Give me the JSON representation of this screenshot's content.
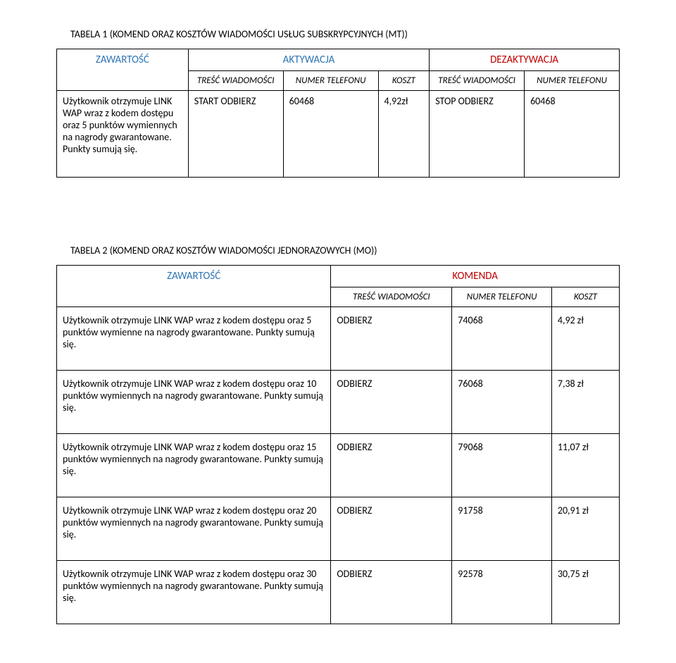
{
  "table1": {
    "title": "TABELA 1 (KOMEND ORAZ KOSZTÓW WIADOMOŚCI USŁUG SUBSKRYPCYJNYCH (MT))",
    "headers": {
      "zawartosc": "ZAWARTOŚĆ",
      "aktywacja": "AKTYWACJA",
      "dezaktywacja": "DEZAKTYWACJA"
    },
    "subheaders": {
      "tresc": "TREŚĆ WIADOMOŚCI",
      "numer": "NUMER TELEFONU",
      "koszt": "KOSZT"
    },
    "row": {
      "zawartosc": "Użytkownik otrzymuje LINK WAP wraz z kodem dostępu oraz 5 punktów wymiennych na nagrody gwarantowane. Punkty sumują się.",
      "akt_tresc": "START ODBIERZ",
      "akt_numer": "60468",
      "koszt": "4,92zł",
      "dez_tresc": "STOP ODBIERZ",
      "dez_numer": "60468"
    }
  },
  "table2": {
    "title": "TABELA 2 (KOMEND ORAZ KOSZTÓW WIADOMOŚCI JEDNORAZOWYCH (MO))",
    "headers": {
      "zawartosc": "ZAWARTOŚĆ",
      "komenda": "KOMENDA"
    },
    "subheaders": {
      "tresc": "TREŚĆ WIADOMOŚCI",
      "numer": "NUMER TELEFONU",
      "koszt": "KOSZT"
    },
    "rows": [
      {
        "zawartosc": "Użytkownik otrzymuje LINK WAP wraz z kodem dostępu oraz 5 punktów wymienne na nagrody gwarantowane. Punkty sumują się.",
        "tresc": "ODBIERZ",
        "numer": "74068",
        "koszt": "4,92 zł"
      },
      {
        "zawartosc": "Użytkownik otrzymuje LINK WAP wraz z kodem dostępu oraz 10 punktów wymiennych na nagrody gwarantowane. Punkty sumują się.",
        "tresc": "ODBIERZ",
        "numer": "76068",
        "koszt": "7,38 zł"
      },
      {
        "zawartosc": "Użytkownik otrzymuje LINK WAP wraz z kodem dostępu oraz 15 punktów wymiennych na nagrody gwarantowane. Punkty sumują się.",
        "tresc": "ODBIERZ",
        "numer": "79068",
        "koszt": "11,07 zł"
      },
      {
        "zawartosc": "Użytkownik otrzymuje LINK WAP wraz z kodem dostępu oraz 20 punktów wymiennych na nagrody gwarantowane. Punkty sumują się.",
        "tresc": "ODBIERZ",
        "numer": "91758",
        "koszt": "20,91 zł"
      },
      {
        "zawartosc": "Użytkownik otrzymuje LINK WAP wraz z kodem dostępu oraz 30 punktów wymiennych na nagrody gwarantowane. Punkty sumują się.",
        "tresc": "ODBIERZ",
        "numer": "92578",
        "koszt": "30,75 zł"
      }
    ]
  }
}
